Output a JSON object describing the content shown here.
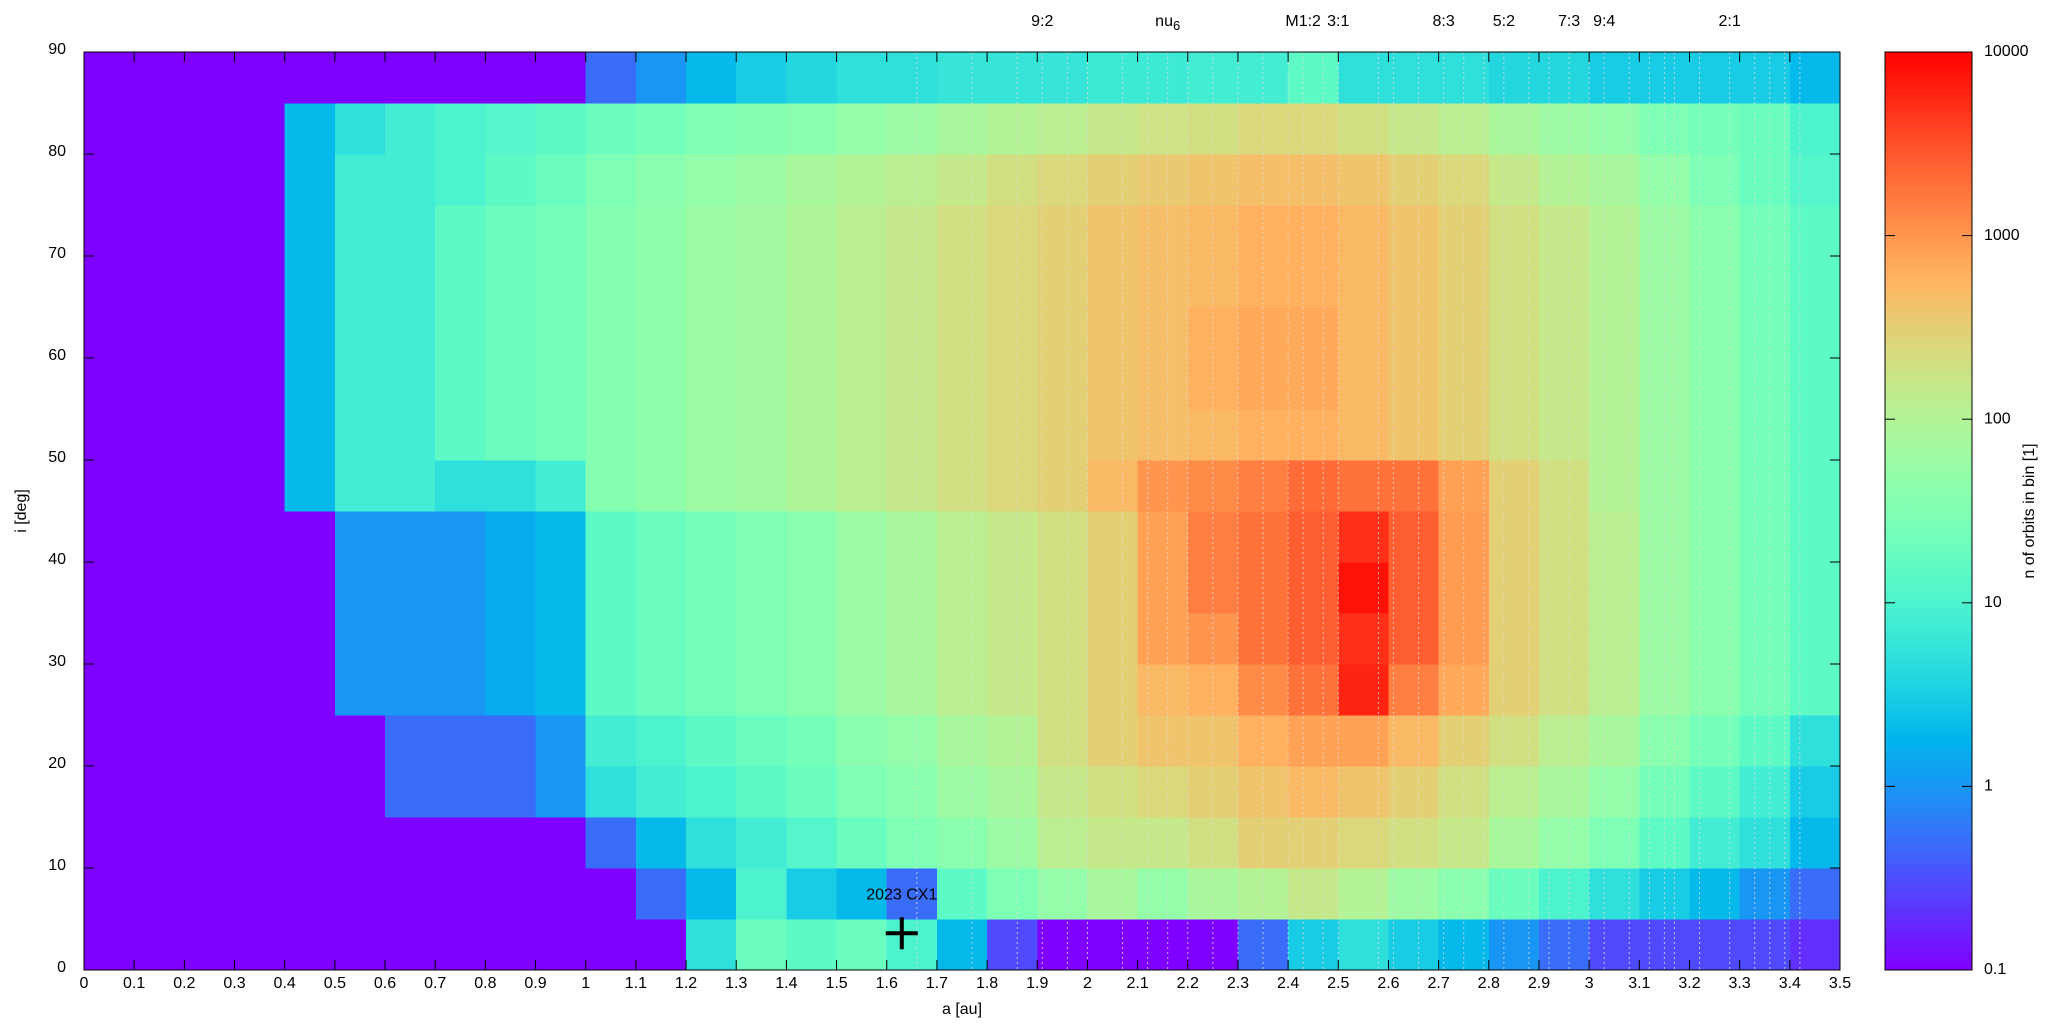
{
  "chart_data": {
    "type": "heatmap",
    "x_label": "a [au]",
    "y_label": "i [deg]",
    "colorbar_label": "n of orbits in bin [1]",
    "xlim": [
      0,
      3.5
    ],
    "ylim": [
      0,
      90
    ],
    "xticks": [
      0,
      0.1,
      0.2,
      0.3,
      0.4,
      0.5,
      0.6,
      0.7,
      0.8,
      0.9,
      1,
      1.1,
      1.2,
      1.3,
      1.4,
      1.5,
      1.6,
      1.7,
      1.8,
      1.9,
      2,
      2.1,
      2.2,
      2.3,
      2.4,
      2.5,
      2.6,
      2.7,
      2.8,
      2.9,
      3,
      3.1,
      3.2,
      3.3,
      3.4,
      3.5
    ],
    "yticks": [
      0,
      10,
      20,
      30,
      40,
      50,
      60,
      70,
      80,
      90
    ],
    "color_log": true,
    "clim": [
      0.1,
      10000
    ],
    "cticks": [
      0.1,
      1,
      10,
      100,
      1000,
      10000
    ],
    "x_bins": [
      0,
      0.1,
      0.2,
      0.3,
      0.4,
      0.5,
      0.6,
      0.7,
      0.8,
      0.9,
      1,
      1.1,
      1.2,
      1.3,
      1.4,
      1.5,
      1.6,
      1.7,
      1.8,
      1.9,
      2,
      2.1,
      2.2,
      2.3,
      2.4,
      2.5,
      2.6,
      2.7,
      2.8,
      2.9,
      3,
      3.1,
      3.2,
      3.3,
      3.4,
      3.5
    ],
    "y_bins": [
      0,
      5,
      10,
      15,
      20,
      25,
      30,
      35,
      40,
      45,
      50,
      55,
      60,
      65,
      70,
      75,
      80,
      85,
      90
    ],
    "values": [
      [
        0.1,
        0.1,
        0.1,
        0.1,
        0.1,
        0.1,
        0.1,
        0.1,
        0.1,
        0.1,
        0.1,
        0.1,
        5,
        20,
        15,
        20,
        10,
        2,
        0.3,
        0.1,
        0.1,
        0.1,
        0.1,
        0.5,
        3,
        5,
        3,
        2,
        1,
        0.5,
        0.3,
        0.3,
        0.3,
        0.3,
        0.2
      ],
      [
        0.1,
        0.1,
        0.1,
        0.1,
        0.1,
        0.1,
        0.1,
        0.1,
        0.1,
        0.1,
        0.1,
        0.5,
        2,
        10,
        3,
        2,
        0.5,
        15,
        30,
        50,
        80,
        50,
        80,
        100,
        150,
        100,
        60,
        40,
        20,
        10,
        5,
        3,
        2,
        1,
        0.5
      ],
      [
        0.1,
        0.1,
        0.1,
        0.1,
        0.1,
        0.1,
        0.1,
        0.1,
        0.1,
        0.1,
        0.5,
        2,
        5,
        8,
        12,
        20,
        30,
        40,
        60,
        120,
        150,
        150,
        200,
        300,
        300,
        250,
        200,
        150,
        80,
        50,
        30,
        15,
        8,
        5,
        2
      ],
      [
        0.1,
        0.1,
        0.1,
        0.1,
        0.1,
        0.1,
        0.5,
        0.5,
        0.5,
        1,
        5,
        8,
        10,
        15,
        20,
        30,
        40,
        60,
        80,
        150,
        200,
        250,
        300,
        400,
        500,
        400,
        300,
        200,
        120,
        80,
        50,
        25,
        15,
        8,
        3
      ],
      [
        0.1,
        0.1,
        0.1,
        0.1,
        0.1,
        0.1,
        0.5,
        0.5,
        0.5,
        1,
        8,
        10,
        15,
        20,
        25,
        40,
        50,
        80,
        100,
        200,
        300,
        400,
        400,
        600,
        800,
        800,
        500,
        300,
        200,
        120,
        80,
        40,
        25,
        15,
        5
      ],
      [
        0.1,
        0.1,
        0.1,
        0.1,
        0.1,
        1,
        1,
        1,
        1.5,
        2,
        15,
        20,
        25,
        30,
        40,
        60,
        80,
        120,
        150,
        200,
        300,
        500,
        600,
        1200,
        1800,
        6000,
        1500,
        700,
        300,
        200,
        120,
        60,
        40,
        25,
        15
      ],
      [
        0.1,
        0.1,
        0.1,
        0.1,
        0.1,
        1,
        1,
        1,
        1.5,
        2,
        15,
        20,
        25,
        30,
        40,
        60,
        80,
        120,
        150,
        200,
        300,
        800,
        1000,
        1800,
        2500,
        5000,
        2500,
        900,
        300,
        200,
        120,
        60,
        40,
        25,
        15
      ],
      [
        0.1,
        0.1,
        0.1,
        0.1,
        0.1,
        1,
        1,
        1,
        1.5,
        2,
        15,
        20,
        25,
        30,
        40,
        60,
        80,
        120,
        150,
        200,
        300,
        800,
        1500,
        1800,
        2500,
        8000,
        2500,
        900,
        300,
        200,
        120,
        60,
        40,
        25,
        15
      ],
      [
        0.1,
        0.1,
        0.1,
        0.1,
        0.1,
        1,
        1,
        1,
        1.5,
        2,
        15,
        20,
        25,
        30,
        40,
        60,
        80,
        120,
        150,
        200,
        300,
        800,
        1500,
        1800,
        2500,
        5000,
        2500,
        900,
        300,
        200,
        120,
        60,
        40,
        25,
        15
      ],
      [
        0.1,
        0.1,
        0.1,
        0.1,
        2,
        8,
        8,
        5,
        5,
        8,
        35,
        45,
        60,
        70,
        90,
        120,
        150,
        200,
        250,
        300,
        500,
        1000,
        1200,
        1500,
        2000,
        1800,
        1800,
        800,
        300,
        200,
        100,
        60,
        40,
        25,
        15
      ],
      [
        0.1,
        0.1,
        0.1,
        0.1,
        2,
        8,
        8,
        15,
        20,
        25,
        35,
        45,
        60,
        70,
        90,
        120,
        150,
        200,
        250,
        300,
        400,
        450,
        500,
        600,
        600,
        500,
        400,
        300,
        200,
        150,
        100,
        60,
        40,
        25,
        15
      ],
      [
        0.1,
        0.1,
        0.1,
        0.1,
        2,
        8,
        8,
        15,
        20,
        25,
        35,
        45,
        60,
        70,
        90,
        120,
        150,
        200,
        250,
        300,
        400,
        450,
        600,
        700,
        700,
        500,
        400,
        300,
        200,
        150,
        100,
        60,
        40,
        25,
        15
      ],
      [
        0.1,
        0.1,
        0.1,
        0.1,
        2,
        8,
        8,
        15,
        20,
        25,
        35,
        45,
        60,
        70,
        90,
        120,
        150,
        200,
        250,
        300,
        400,
        450,
        600,
        700,
        700,
        500,
        400,
        300,
        200,
        150,
        100,
        60,
        40,
        25,
        15
      ],
      [
        0.1,
        0.1,
        0.1,
        0.1,
        2,
        8,
        8,
        15,
        20,
        25,
        35,
        45,
        60,
        70,
        90,
        120,
        150,
        200,
        250,
        300,
        400,
        450,
        500,
        600,
        600,
        500,
        400,
        300,
        200,
        150,
        100,
        60,
        40,
        25,
        15
      ],
      [
        0.1,
        0.1,
        0.1,
        0.1,
        2,
        8,
        8,
        15,
        20,
        25,
        35,
        45,
        60,
        70,
        90,
        120,
        150,
        200,
        250,
        300,
        400,
        450,
        500,
        600,
        600,
        500,
        400,
        300,
        200,
        150,
        100,
        60,
        40,
        25,
        15
      ],
      [
        0.1,
        0.1,
        0.1,
        0.1,
        2,
        8,
        8,
        10,
        15,
        20,
        30,
        40,
        50,
        60,
        80,
        100,
        120,
        150,
        200,
        250,
        300,
        350,
        400,
        450,
        450,
        400,
        300,
        250,
        150,
        100,
        80,
        50,
        30,
        20,
        12
      ],
      [
        0.1,
        0.1,
        0.1,
        0.1,
        2,
        5,
        8,
        10,
        12,
        15,
        20,
        25,
        30,
        35,
        40,
        50,
        60,
        80,
        100,
        120,
        150,
        180,
        200,
        250,
        250,
        200,
        150,
        120,
        80,
        60,
        50,
        30,
        25,
        20,
        10
      ],
      [
        0.1,
        0.1,
        0.1,
        0.1,
        0.1,
        0.1,
        0.1,
        0.1,
        0.1,
        0.1,
        0.5,
        1,
        2,
        3,
        4,
        5,
        5,
        6,
        6,
        6,
        7,
        7,
        8,
        8,
        15,
        5,
        5,
        5,
        4,
        4,
        3,
        3,
        3,
        3,
        2
      ]
    ],
    "resonances": [
      {
        "label": "9:2",
        "a": 1.91
      },
      {
        "label": "nu",
        "sub": "6",
        "a": 2.16
      },
      {
        "label": "M1:2",
        "a": 2.43
      },
      {
        "label": "3:1",
        "a": 2.5
      },
      {
        "label": "8:3",
        "a": 2.71
      },
      {
        "label": "5:2",
        "a": 2.83
      },
      {
        "label": "7:3",
        "a": 2.96
      },
      {
        "label": "9:4",
        "a": 3.03
      },
      {
        "label": "2:1",
        "a": 3.28
      }
    ],
    "resonance_lines": [
      1.66,
      1.77,
      1.86,
      1.96,
      2.0,
      2.07,
      2.12,
      2.2,
      2.25,
      2.3,
      2.35,
      2.4,
      2.47,
      2.58,
      2.61,
      2.66,
      2.75,
      2.79,
      2.88,
      2.92,
      3.0,
      3.08,
      3.12,
      3.15,
      3.17,
      3.22,
      3.33,
      3.36,
      3.39,
      3.42
    ],
    "marker": {
      "label": "2023 CX1",
      "a": 1.63,
      "i": 3.6
    }
  }
}
